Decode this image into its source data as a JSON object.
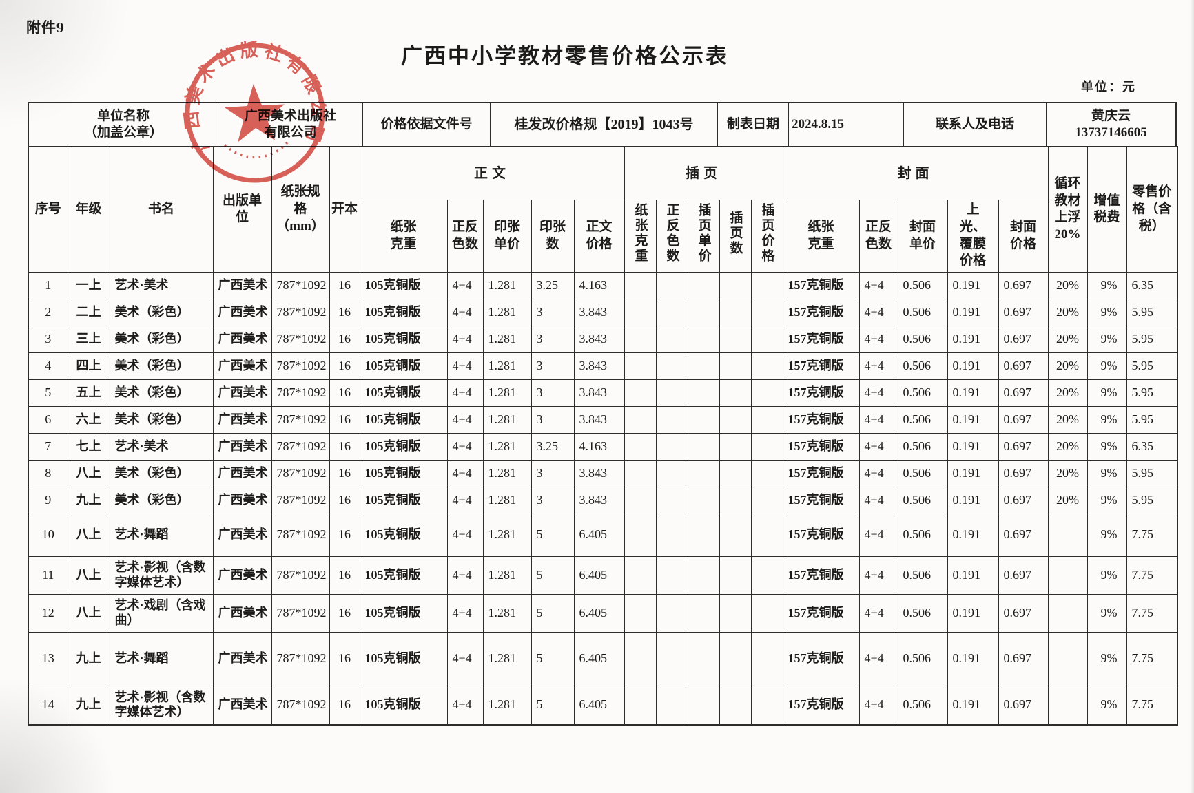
{
  "page": {
    "attachment_label": "附件9",
    "title": "广西中小学教材零售价格公示表",
    "unit_note": "单位：元"
  },
  "info": {
    "unit_name_label": "单位名称\n（加盖公章）",
    "unit_name_value": "广西美术出版社\n有限公司",
    "price_doc_label": "价格依据文件号",
    "price_doc_value": "桂发改价格规【2019】1043号",
    "date_label": "制表日期",
    "date_value": "2024.8.15",
    "contact_label": "联系人及电话",
    "contact_value": "黄庆云\n13737146605"
  },
  "seal": {
    "text": "广西美术出版社有限公司"
  },
  "table": {
    "header": {
      "seq": "序号",
      "grade": "年级",
      "book": "书名",
      "publisher": "出版单\n位",
      "paper_size": "纸张规\n格\n（mm）",
      "format": "开本",
      "body_group": "正文",
      "insert_group": "插页",
      "cover_group": "封面",
      "body_cols": [
        "纸张克重",
        "正反色数",
        "印张单价",
        "印张数",
        "正文价格"
      ],
      "insert_cols": [
        "纸张克重",
        "正反色数",
        "插页单价",
        "插页数",
        "插页价格"
      ],
      "cover_cols": [
        "纸张克重",
        "正反色数",
        "封面单价",
        "上光、覆膜价格",
        "封面价格"
      ],
      "recycle": "循环教材上浮20%",
      "vat": "增值税费",
      "retail": "零售价格（含税）"
    },
    "col_keys": [
      "seq",
      "grade",
      "book",
      "publisher",
      "size",
      "format",
      "b_paper",
      "b_colors",
      "b_sheet_price",
      "b_sheets",
      "b_price",
      "i_paper",
      "i_colors",
      "i_unit",
      "i_count",
      "i_price",
      "c_paper",
      "c_colors",
      "c_unit",
      "c_coating",
      "c_price",
      "recycle",
      "vat",
      "retail"
    ],
    "rows": [
      [
        "1",
        "一上",
        "艺术·美术",
        "广西美术",
        "787*1092",
        "16",
        "105克铜版",
        "4+4",
        "1.281",
        "3.25",
        "4.163",
        "",
        "",
        "",
        "",
        "",
        "157克铜版",
        "4+4",
        "0.506",
        "0.191",
        "0.697",
        "20%",
        "9%",
        "6.35"
      ],
      [
        "2",
        "二上",
        "美术（彩色）",
        "广西美术",
        "787*1092",
        "16",
        "105克铜版",
        "4+4",
        "1.281",
        "3",
        "3.843",
        "",
        "",
        "",
        "",
        "",
        "157克铜版",
        "4+4",
        "0.506",
        "0.191",
        "0.697",
        "20%",
        "9%",
        "5.95"
      ],
      [
        "3",
        "三上",
        "美术（彩色）",
        "广西美术",
        "787*1092",
        "16",
        "105克铜版",
        "4+4",
        "1.281",
        "3",
        "3.843",
        "",
        "",
        "",
        "",
        "",
        "157克铜版",
        "4+4",
        "0.506",
        "0.191",
        "0.697",
        "20%",
        "9%",
        "5.95"
      ],
      [
        "4",
        "四上",
        "美术（彩色）",
        "广西美术",
        "787*1092",
        "16",
        "105克铜版",
        "4+4",
        "1.281",
        "3",
        "3.843",
        "",
        "",
        "",
        "",
        "",
        "157克铜版",
        "4+4",
        "0.506",
        "0.191",
        "0.697",
        "20%",
        "9%",
        "5.95"
      ],
      [
        "5",
        "五上",
        "美术（彩色）",
        "广西美术",
        "787*1092",
        "16",
        "105克铜版",
        "4+4",
        "1.281",
        "3",
        "3.843",
        "",
        "",
        "",
        "",
        "",
        "157克铜版",
        "4+4",
        "0.506",
        "0.191",
        "0.697",
        "20%",
        "9%",
        "5.95"
      ],
      [
        "6",
        "六上",
        "美术（彩色）",
        "广西美术",
        "787*1092",
        "16",
        "105克铜版",
        "4+4",
        "1.281",
        "3",
        "3.843",
        "",
        "",
        "",
        "",
        "",
        "157克铜版",
        "4+4",
        "0.506",
        "0.191",
        "0.697",
        "20%",
        "9%",
        "5.95"
      ],
      [
        "7",
        "七上",
        "艺术·美术",
        "广西美术",
        "787*1092",
        "16",
        "105克铜版",
        "4+4",
        "1.281",
        "3.25",
        "4.163",
        "",
        "",
        "",
        "",
        "",
        "157克铜版",
        "4+4",
        "0.506",
        "0.191",
        "0.697",
        "20%",
        "9%",
        "6.35"
      ],
      [
        "8",
        "八上",
        "美术（彩色）",
        "广西美术",
        "787*1092",
        "16",
        "105克铜版",
        "4+4",
        "1.281",
        "3",
        "3.843",
        "",
        "",
        "",
        "",
        "",
        "157克铜版",
        "4+4",
        "0.506",
        "0.191",
        "0.697",
        "20%",
        "9%",
        "5.95"
      ],
      [
        "9",
        "九上",
        "美术（彩色）",
        "广西美术",
        "787*1092",
        "16",
        "105克铜版",
        "4+4",
        "1.281",
        "3",
        "3.843",
        "",
        "",
        "",
        "",
        "",
        "157克铜版",
        "4+4",
        "0.506",
        "0.191",
        "0.697",
        "20%",
        "9%",
        "5.95"
      ],
      [
        "10",
        "八上",
        "艺术·舞蹈",
        "广西美术",
        "787*1092",
        "16",
        "105克铜版",
        "4+4",
        "1.281",
        "5",
        "6.405",
        "",
        "",
        "",
        "",
        "",
        "157克铜版",
        "4+4",
        "0.506",
        "0.191",
        "0.697",
        "",
        "9%",
        "7.75"
      ],
      [
        "11",
        "八上",
        "艺术·影视（含数字媒体艺术）",
        "广西美术",
        "787*1092",
        "16",
        "105克铜版",
        "4+4",
        "1.281",
        "5",
        "6.405",
        "",
        "",
        "",
        "",
        "",
        "157克铜版",
        "4+4",
        "0.506",
        "0.191",
        "0.697",
        "",
        "9%",
        "7.75"
      ],
      [
        "12",
        "八上",
        "艺术·戏剧（含戏曲）",
        "广西美术",
        "787*1092",
        "16",
        "105克铜版",
        "4+4",
        "1.281",
        "5",
        "6.405",
        "",
        "",
        "",
        "",
        "",
        "157克铜版",
        "4+4",
        "0.506",
        "0.191",
        "0.697",
        "",
        "9%",
        "7.75"
      ],
      [
        "13",
        "九上",
        "艺术·舞蹈",
        "广西美术",
        "787*1092",
        "16",
        "105克铜版",
        "4+4",
        "1.281",
        "5",
        "6.405",
        "",
        "",
        "",
        "",
        "",
        "157克铜版",
        "4+4",
        "0.506",
        "0.191",
        "0.697",
        "",
        "9%",
        "7.75"
      ],
      [
        "14",
        "九上",
        "艺术·影视（含数字媒体艺术）",
        "广西美术",
        "787*1092",
        "16",
        "105克铜版",
        "4+4",
        "1.281",
        "5",
        "6.405",
        "",
        "",
        "",
        "",
        "",
        "157克铜版",
        "4+4",
        "0.506",
        "0.191",
        "0.697",
        "",
        "9%",
        "7.75"
      ]
    ]
  }
}
